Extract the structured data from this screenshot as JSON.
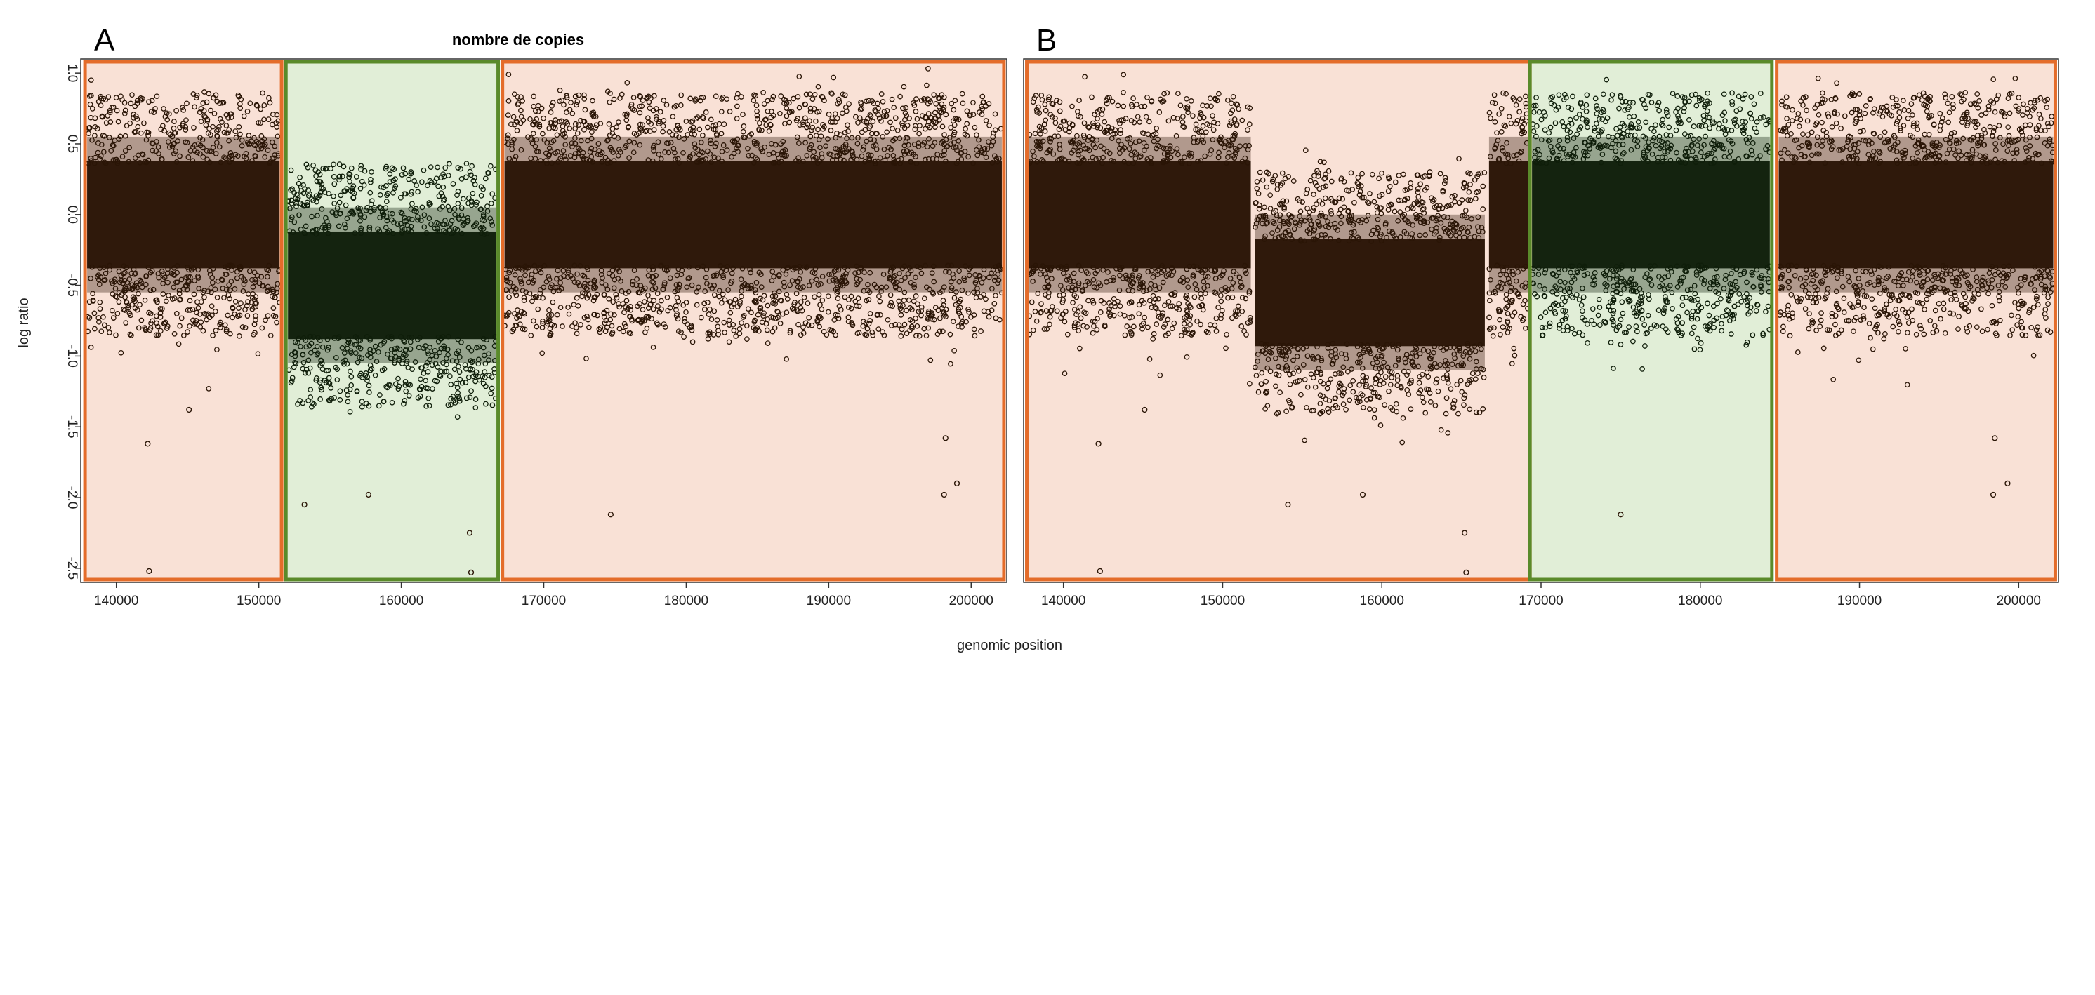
{
  "figure": {
    "title": "nombre de copies",
    "xlabel": "genomic position",
    "ylabel": "log ratio"
  },
  "colors": {
    "orange_edge": "#e46c2a",
    "orange_fill": "#f9e1d6",
    "green_edge": "#5a8a2a",
    "green_fill": "#e1eed7",
    "points": "#2a1506",
    "points_green": "#0f1e0a",
    "axis": "#333333"
  },
  "chart_data": [
    {
      "type": "scatter",
      "panel_label": "A",
      "xlabel": "genomic position",
      "ylabel": "log ratio",
      "xlim": [
        137500,
        202500
      ],
      "ylim": [
        -2.6,
        1.1
      ],
      "x_ticks": [
        140000,
        150000,
        160000,
        170000,
        180000,
        190000,
        200000
      ],
      "x_tick_labels": [
        "140000",
        "150000",
        "160000",
        "170000",
        "180000",
        "190000",
        "200000"
      ],
      "y_ticks": [
        1.0,
        0.5,
        0.0,
        -0.5,
        -1.0,
        -1.5,
        -2.0,
        -2.5
      ],
      "y_tick_labels": [
        "1.0",
        "0.5",
        "0.0",
        "-0.5",
        "-1.0",
        "-1.5",
        "-2.0",
        "-2.5"
      ],
      "grid": false,
      "segments": [
        {
          "x_start": 137800,
          "x_end": 151600,
          "highlight": "orange",
          "mean_log_ratio": 0.0
        },
        {
          "x_start": 151900,
          "x_end": 166800,
          "highlight": "green",
          "mean_log_ratio": -0.5
        },
        {
          "x_start": 167100,
          "x_end": 202300,
          "highlight": "orange",
          "mean_log_ratio": 0.0
        }
      ],
      "outliers": [
        [
          142200,
          -1.62
        ],
        [
          142300,
          -2.52
        ],
        [
          145100,
          -1.38
        ],
        [
          153200,
          -2.05
        ],
        [
          157700,
          -1.98
        ],
        [
          164800,
          -2.25
        ],
        [
          164900,
          -2.53
        ],
        [
          174700,
          -2.12
        ],
        [
          199000,
          -1.9
        ],
        [
          198100,
          -1.98
        ],
        [
          198200,
          -1.58
        ]
      ]
    },
    {
      "type": "scatter",
      "panel_label": "B",
      "xlabel": "genomic position",
      "ylabel": "log ratio",
      "xlim": [
        137500,
        202500
      ],
      "ylim": [
        -2.6,
        1.1
      ],
      "x_ticks": [
        140000,
        150000,
        160000,
        170000,
        180000,
        190000,
        200000
      ],
      "x_tick_labels": [
        "140000",
        "150000",
        "160000",
        "170000",
        "180000",
        "190000",
        "200000"
      ],
      "y_ticks": [
        1.0,
        0.5,
        0.0,
        -0.5,
        -1.0,
        -1.5,
        -2.0,
        -2.5
      ],
      "y_tick_labels": [
        "1.0",
        "0.5",
        "0.0",
        "-0.5",
        "-1.0",
        "-1.5",
        "-2.0",
        "-2.5"
      ],
      "grid": false,
      "segments": [
        {
          "x_start": 137700,
          "x_end": 151900,
          "highlight": "orange",
          "mean_log_ratio": 0.0
        },
        {
          "x_start": 151900,
          "x_end": 166600,
          "highlight": "orange",
          "mean_log_ratio": -0.55
        },
        {
          "x_start": 166600,
          "x_end": 169300,
          "highlight": "orange",
          "mean_log_ratio": 0.0
        },
        {
          "x_start": 169300,
          "x_end": 184500,
          "highlight": "green",
          "mean_log_ratio": 0.0
        },
        {
          "x_start": 184800,
          "x_end": 202300,
          "highlight": "orange",
          "mean_log_ratio": 0.0
        }
      ],
      "outliers": [
        [
          142200,
          -1.62
        ],
        [
          142300,
          -2.52
        ],
        [
          145100,
          -1.38
        ],
        [
          154100,
          -2.05
        ],
        [
          158800,
          -1.98
        ],
        [
          165200,
          -2.25
        ],
        [
          165300,
          -2.53
        ],
        [
          175000,
          -2.12
        ],
        [
          199300,
          -1.9
        ],
        [
          198400,
          -1.98
        ],
        [
          198500,
          -1.58
        ]
      ]
    }
  ]
}
